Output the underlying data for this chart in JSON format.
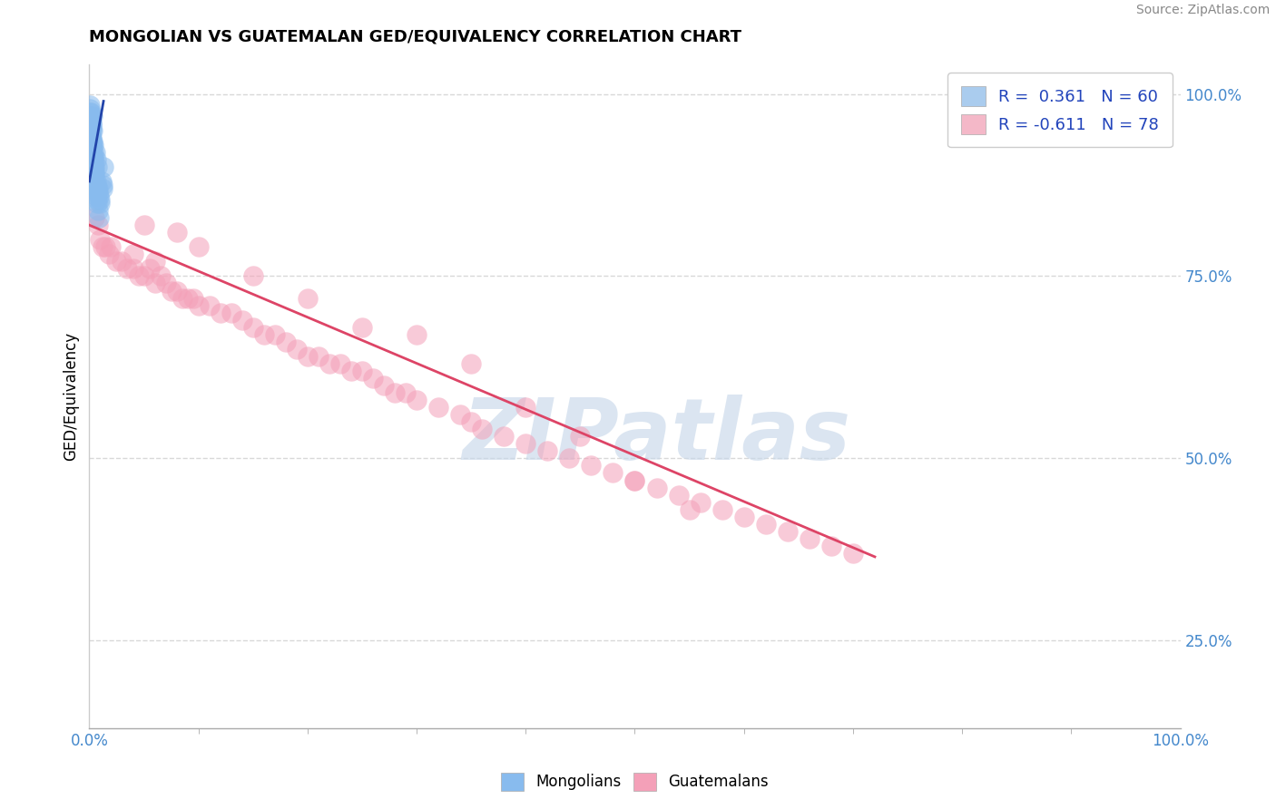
{
  "title": "MONGOLIAN VS GUATEMALAN GED/EQUIVALENCY CORRELATION CHART",
  "source": "Source: ZipAtlas.com",
  "ylabel": "GED/Equivalency",
  "right_yticks_labels": [
    "25.0%",
    "50.0%",
    "75.0%",
    "100.0%"
  ],
  "right_yticks_vals": [
    0.25,
    0.5,
    0.75,
    1.0
  ],
  "mongolian_color": "#88bbee",
  "guatemalan_color": "#f4a0b8",
  "trend_mongolian_color": "#2244aa",
  "trend_guatemalan_color": "#dd4466",
  "r_mongolian": " 0.361",
  "n_mongolian": "60",
  "r_guatemalan": "-0.611",
  "n_guatemalan": "78",
  "legend_mongolian_color": "#aaccee",
  "legend_guatemalan_color": "#f4b8c8",
  "watermark": "ZIPatlas",
  "watermark_color": "#c8d8ea",
  "background_color": "#ffffff",
  "grid_color": "#d8d8d8",
  "xlim": [
    0.0,
    1.0
  ],
  "ylim": [
    0.13,
    1.04
  ],
  "mongolian_x": [
    0.0003,
    0.0005,
    0.0008,
    0.001,
    0.001,
    0.0012,
    0.0015,
    0.002,
    0.002,
    0.002,
    0.0022,
    0.0025,
    0.003,
    0.003,
    0.003,
    0.003,
    0.0032,
    0.0035,
    0.004,
    0.004,
    0.004,
    0.0042,
    0.0045,
    0.005,
    0.005,
    0.0052,
    0.006,
    0.006,
    0.0062,
    0.007,
    0.007,
    0.0072,
    0.008,
    0.008,
    0.009,
    0.009,
    0.01,
    0.011,
    0.012,
    0.013,
    0.0005,
    0.001,
    0.0015,
    0.002,
    0.0025,
    0.003,
    0.0035,
    0.004,
    0.005,
    0.006,
    0.0008,
    0.0018,
    0.0028,
    0.0038,
    0.0048,
    0.0058,
    0.0068,
    0.008,
    0.01,
    0.012
  ],
  "mongolian_y": [
    0.98,
    0.97,
    0.96,
    0.975,
    0.965,
    0.955,
    0.94,
    0.93,
    0.95,
    0.92,
    0.96,
    0.94,
    0.91,
    0.93,
    0.95,
    0.97,
    0.9,
    0.92,
    0.89,
    0.91,
    0.93,
    0.88,
    0.9,
    0.87,
    0.89,
    0.92,
    0.86,
    0.88,
    0.91,
    0.85,
    0.87,
    0.9,
    0.84,
    0.87,
    0.83,
    0.86,
    0.85,
    0.88,
    0.87,
    0.9,
    0.985,
    0.96,
    0.945,
    0.96,
    0.935,
    0.915,
    0.905,
    0.895,
    0.885,
    0.875,
    0.975,
    0.955,
    0.935,
    0.915,
    0.895,
    0.875,
    0.855,
    0.865,
    0.855,
    0.875
  ],
  "guatemalan_x": [
    0.005,
    0.008,
    0.01,
    0.012,
    0.015,
    0.018,
    0.02,
    0.025,
    0.03,
    0.035,
    0.04,
    0.045,
    0.05,
    0.055,
    0.06,
    0.065,
    0.07,
    0.075,
    0.08,
    0.085,
    0.09,
    0.095,
    0.1,
    0.11,
    0.12,
    0.13,
    0.14,
    0.15,
    0.16,
    0.17,
    0.18,
    0.19,
    0.2,
    0.21,
    0.22,
    0.23,
    0.24,
    0.25,
    0.26,
    0.27,
    0.28,
    0.29,
    0.3,
    0.32,
    0.34,
    0.35,
    0.36,
    0.38,
    0.4,
    0.42,
    0.44,
    0.46,
    0.48,
    0.5,
    0.52,
    0.54,
    0.56,
    0.58,
    0.6,
    0.62,
    0.64,
    0.66,
    0.68,
    0.7,
    0.5,
    0.4,
    0.3,
    0.2,
    0.1,
    0.05,
    0.55,
    0.45,
    0.35,
    0.25,
    0.15,
    0.08,
    0.06,
    0.04
  ],
  "guatemalan_y": [
    0.83,
    0.82,
    0.8,
    0.79,
    0.79,
    0.78,
    0.79,
    0.77,
    0.77,
    0.76,
    0.76,
    0.75,
    0.75,
    0.76,
    0.74,
    0.75,
    0.74,
    0.73,
    0.73,
    0.72,
    0.72,
    0.72,
    0.71,
    0.71,
    0.7,
    0.7,
    0.69,
    0.68,
    0.67,
    0.67,
    0.66,
    0.65,
    0.64,
    0.64,
    0.63,
    0.63,
    0.62,
    0.62,
    0.61,
    0.6,
    0.59,
    0.59,
    0.58,
    0.57,
    0.56,
    0.55,
    0.54,
    0.53,
    0.52,
    0.51,
    0.5,
    0.49,
    0.48,
    0.47,
    0.46,
    0.45,
    0.44,
    0.43,
    0.42,
    0.41,
    0.4,
    0.39,
    0.38,
    0.37,
    0.47,
    0.57,
    0.67,
    0.72,
    0.79,
    0.82,
    0.43,
    0.53,
    0.63,
    0.68,
    0.75,
    0.81,
    0.77,
    0.78
  ],
  "trend_g_x_start": 0.0,
  "trend_g_x_end": 0.72,
  "trend_g_y_start": 0.82,
  "trend_g_y_end": 0.365,
  "trend_m_x_start": 0.0,
  "trend_m_x_end": 0.013,
  "trend_m_y_start": 0.88,
  "trend_m_y_end": 0.99
}
